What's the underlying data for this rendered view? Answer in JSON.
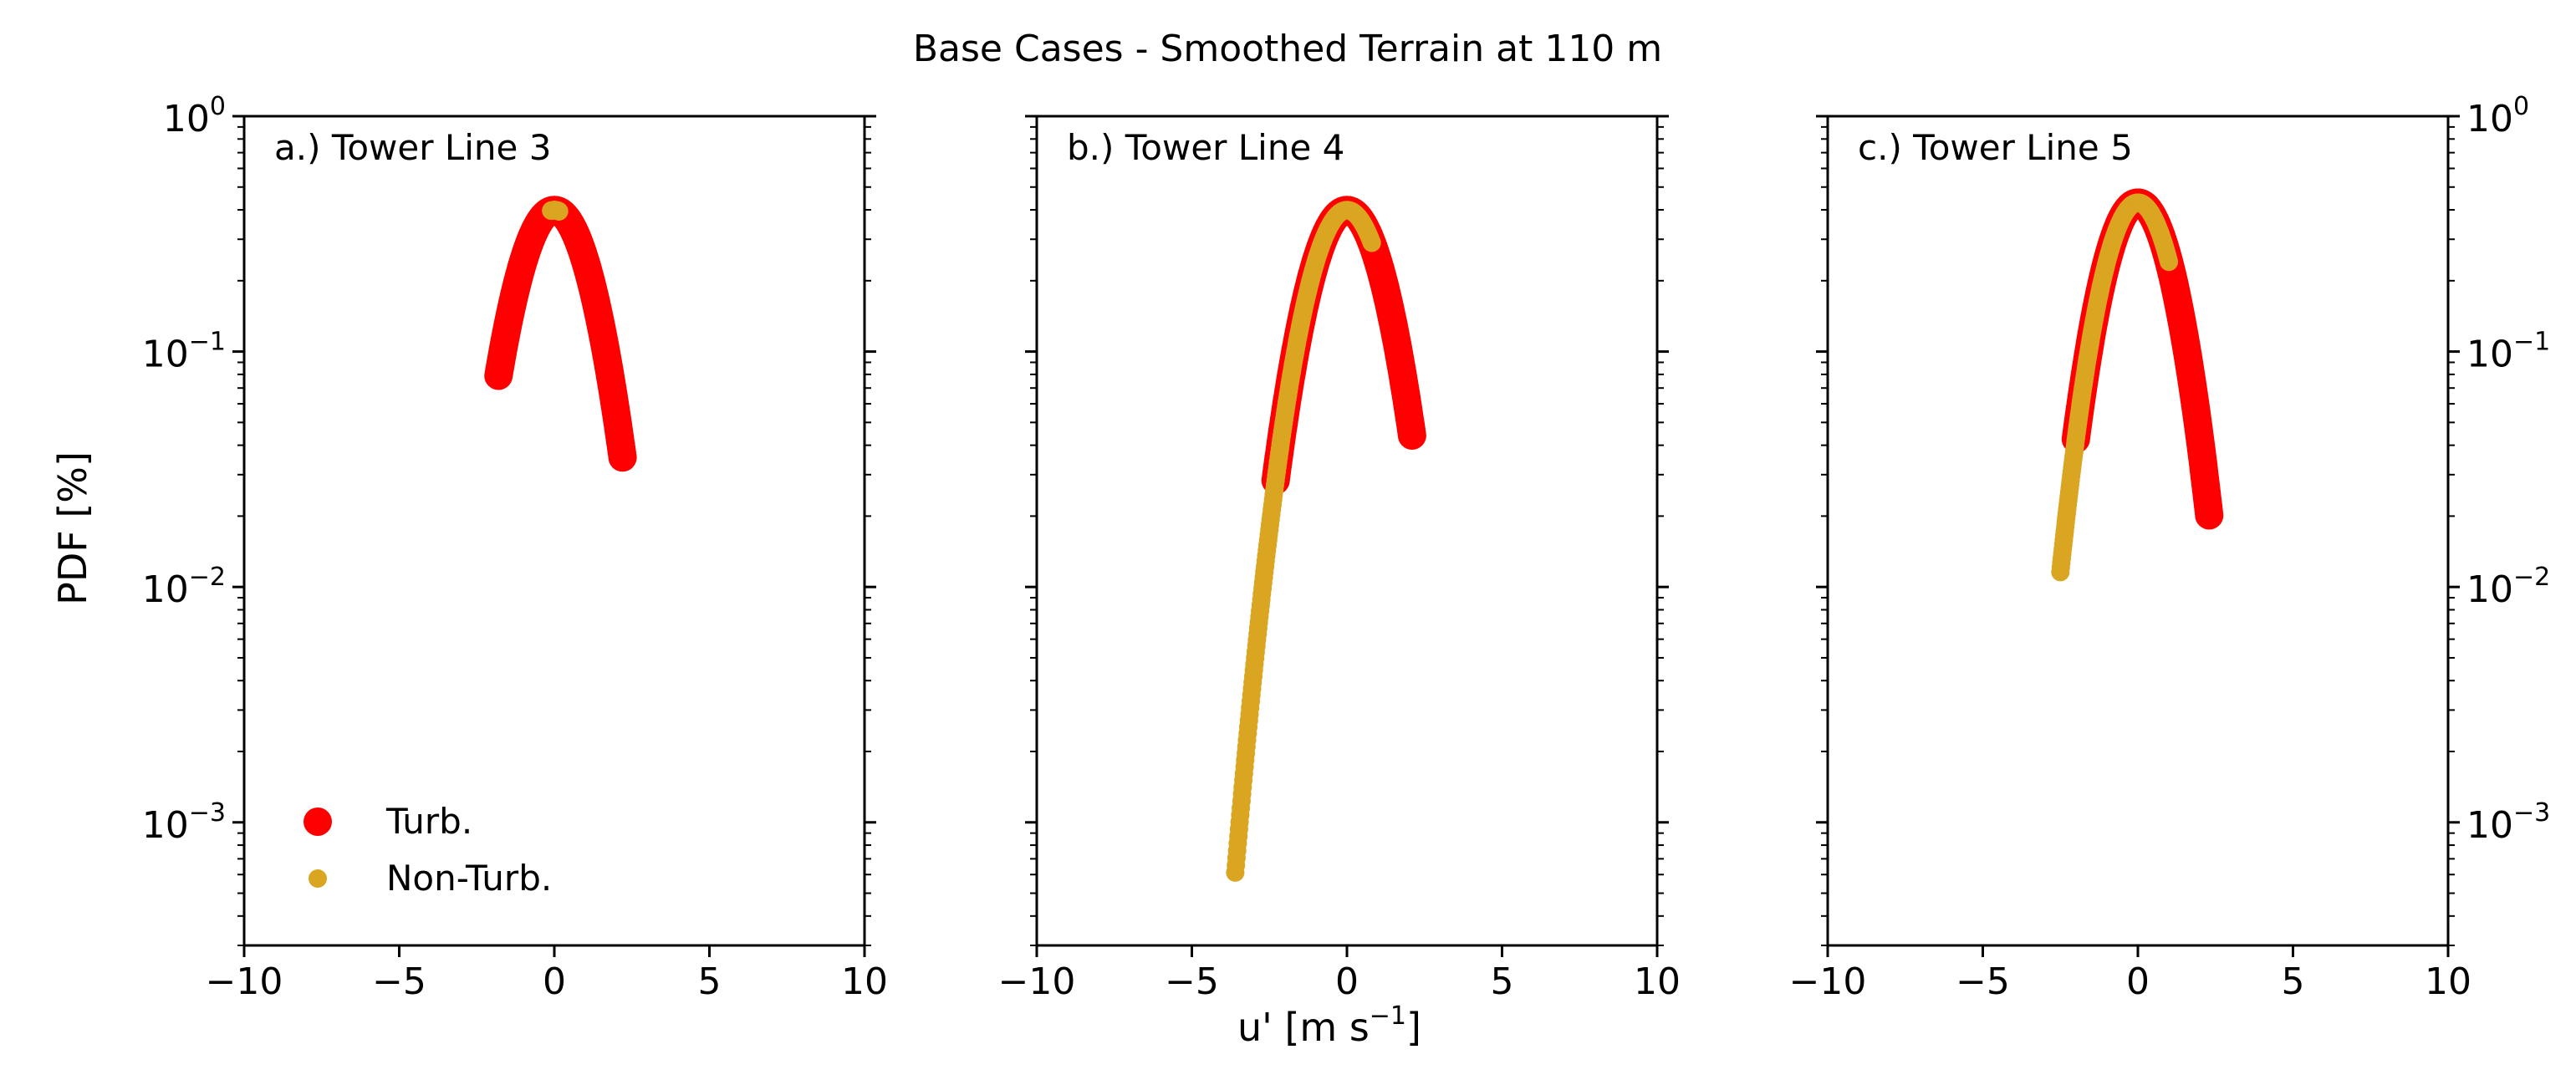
{
  "figure": {
    "title": "Base Cases - Smoothed Terrain at 110 m",
    "ylabel": "PDF [%]",
    "xlabel_main": "u' [m s",
    "xlabel_sup": "−1",
    "xlabel_end": "]"
  },
  "colors": {
    "turb": "#ff0000",
    "nonturb": "#daa520",
    "axis": "#000000"
  },
  "chart_data": [
    {
      "type": "scatter",
      "panel_label": "a.) Tower Line 3",
      "xlim": [
        -10,
        10
      ],
      "ylim": [
        0.0003,
        1
      ],
      "yscale": "log",
      "xticks": [
        -10,
        -5,
        0,
        5,
        10
      ],
      "xtick_labels": [
        "−10",
        "−5",
        "0",
        "5",
        "10"
      ],
      "yticks": [
        0.001,
        0.01,
        0.1,
        1
      ],
      "ytick_base": "10",
      "ytick_exps": [
        "−3",
        "−2",
        "−1",
        "0"
      ],
      "series": [
        {
          "name": "Turb.",
          "sigma": 1.0,
          "xmin": -1.8,
          "xmax": 2.2
        },
        {
          "name": "Non-Turb.",
          "sigma": 1.0,
          "xmin": -0.1,
          "xmax": 0.15
        }
      ],
      "legend": {
        "location": "lower-left",
        "entries": [
          "Turb.",
          "Non-Turb."
        ]
      }
    },
    {
      "type": "scatter",
      "panel_label": "b.) Tower Line 4",
      "xlim": [
        -10,
        10
      ],
      "ylim": [
        0.0003,
        1
      ],
      "yscale": "log",
      "xticks": [
        -10,
        -5,
        0,
        5,
        10
      ],
      "xtick_labels": [
        "−10",
        "−5",
        "0",
        "5",
        "10"
      ],
      "yticks": [
        0.001,
        0.01,
        0.1,
        1
      ],
      "series": [
        {
          "name": "Turb.",
          "sigma": 1.0,
          "xmin": -2.3,
          "xmax": 2.1
        },
        {
          "name": "Non-Turb.",
          "sigma": 1.0,
          "xmin": -3.6,
          "xmax": 0.8
        }
      ]
    },
    {
      "type": "scatter",
      "panel_label": "c.) Tower Line 5",
      "xlim": [
        -10,
        10
      ],
      "ylim": [
        0.0003,
        1
      ],
      "yscale": "log",
      "xticks": [
        -10,
        -5,
        0,
        5,
        10
      ],
      "xtick_labels": [
        "−10",
        "−5",
        "0",
        "5",
        "10"
      ],
      "yticks": [
        0.001,
        0.01,
        0.1,
        1
      ],
      "ytick_base": "10",
      "ytick_exps": [
        "−3",
        "−2",
        "−1",
        "0"
      ],
      "series": [
        {
          "name": "Turb.",
          "sigma": 0.93,
          "xmin": -2.0,
          "xmax": 2.3
        },
        {
          "name": "Non-Turb.",
          "sigma": 0.93,
          "xmin": -2.5,
          "xmax": 1.0
        }
      ]
    }
  ]
}
